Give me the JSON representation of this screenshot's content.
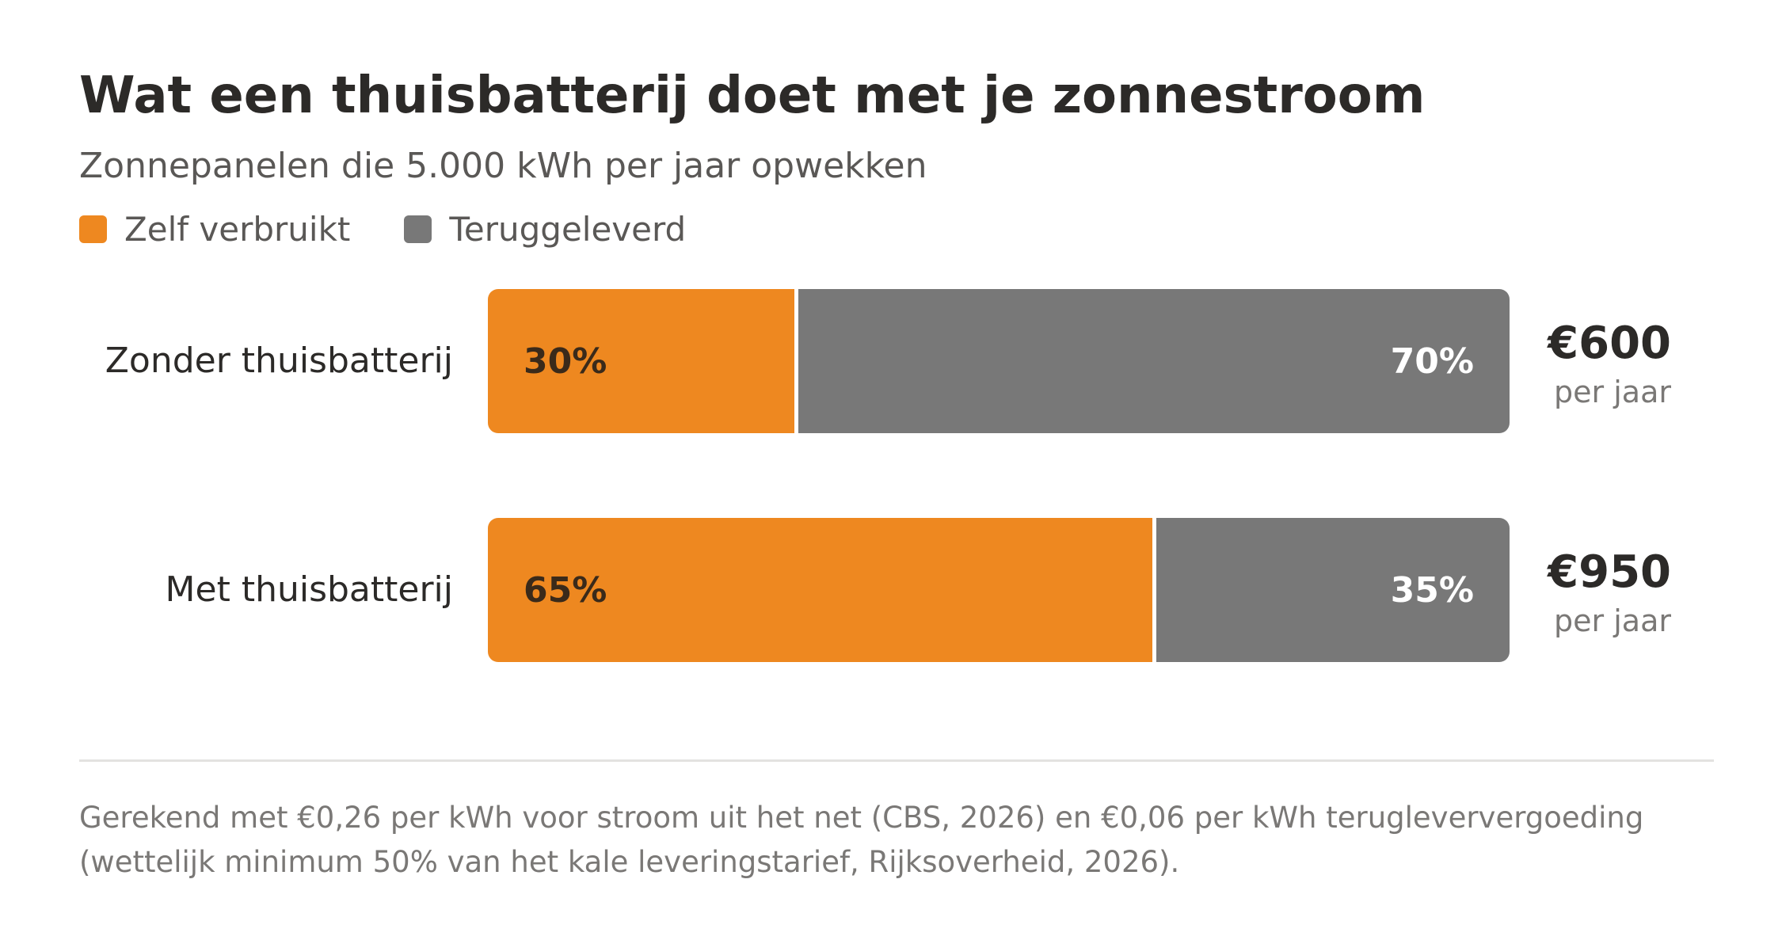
{
  "colors": {
    "self": "#ee8820",
    "returned": "#787878",
    "self_label": "#3a2a1a",
    "returned_label": "#ffffff"
  },
  "chart_data": {
    "type": "bar",
    "orientation": "horizontal",
    "stacked": true,
    "title": "Wat een thuisbatterij doet met je zonnestroom",
    "subtitle": "Zonnepanelen die 5.000 kWh per jaar opwekken",
    "legend_position": "top-left",
    "grid": false,
    "xlim": [
      0,
      100
    ],
    "categories": [
      "Zonder thuisbatterij",
      "Met thuisbatterij"
    ],
    "series": [
      {
        "name": "Zelf verbruikt",
        "values": [
          30,
          65
        ],
        "labels": [
          "30%",
          "65%"
        ]
      },
      {
        "name": "Teruggeleverd",
        "values": [
          70,
          35
        ],
        "labels": [
          "70%",
          "35%"
        ]
      }
    ],
    "annotations": [
      {
        "value": "€600",
        "unit": "per jaar"
      },
      {
        "value": "€950",
        "unit": "per jaar"
      }
    ]
  },
  "footnote": {
    "line1": "Gerekend met €0,26 per kWh voor stroom uit het net (CBS, 2026) en €0,06 per kWh terugleververgoeding",
    "line2": "(wettelijk minimum 50% van het kale leveringstarief, Rijksoverheid, 2026)."
  }
}
